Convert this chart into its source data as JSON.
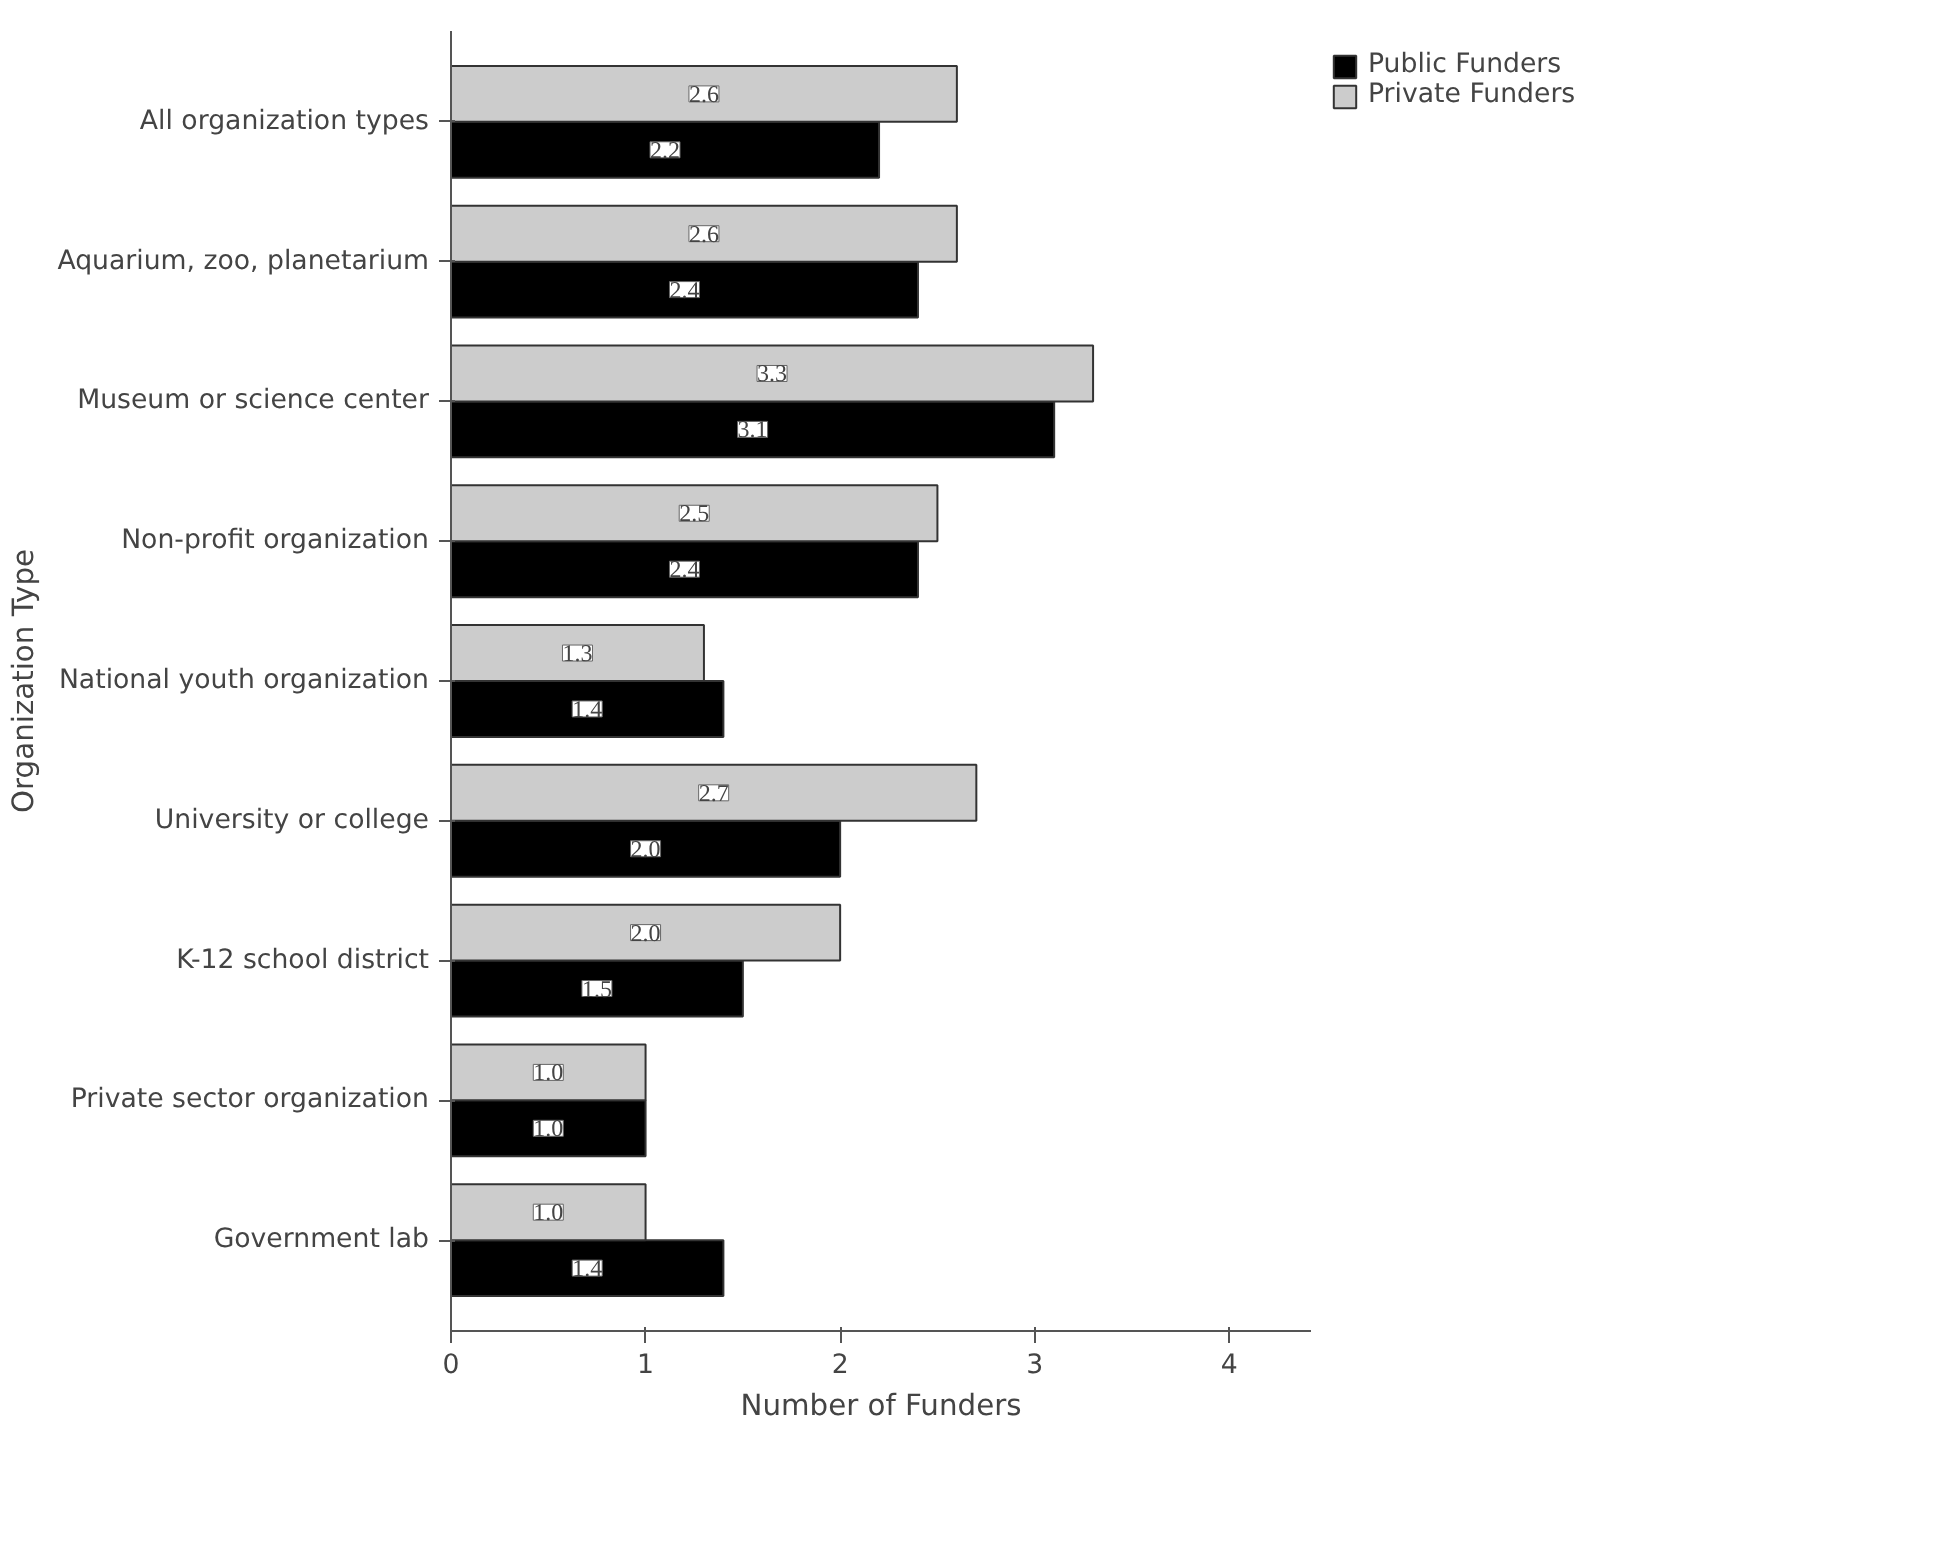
{
  "chart_data": {
    "type": "bar",
    "orientation": "horizontal",
    "xlabel": "Number of Funders",
    "ylabel": "Organization Type",
    "categories": [
      "All organization types",
      "Aquarium, zoo, planetarium",
      "Museum or science center",
      "Non-profit organization",
      "National youth organization",
      "University or college",
      "K-12 school district",
      "Private sector organization",
      "Government lab"
    ],
    "series": [
      {
        "name": "Public Funders",
        "color": "#000000",
        "values": [
          2.2,
          2.4,
          3.1,
          2.4,
          1.4,
          2.0,
          1.5,
          1.0,
          1.4
        ],
        "value_labels": [
          "2.2",
          "2.4",
          "3.1",
          "2.4",
          "1.4",
          "2.0",
          "1.5",
          "1.0",
          "1.4"
        ]
      },
      {
        "name": "Private Funders",
        "color": "#cccccc",
        "values": [
          2.6,
          2.6,
          3.3,
          2.5,
          1.3,
          2.7,
          2.0,
          1.0,
          1.0
        ],
        "value_labels": [
          "2.6",
          "2.6",
          "3.3",
          "2.5",
          "1.3",
          "2.7",
          "2.0",
          "1.0",
          "1.0"
        ]
      }
    ],
    "xlim": [
      0,
      4.42
    ],
    "xticks": [
      0,
      1,
      2,
      3,
      4
    ],
    "grid": false,
    "legend": "right"
  }
}
